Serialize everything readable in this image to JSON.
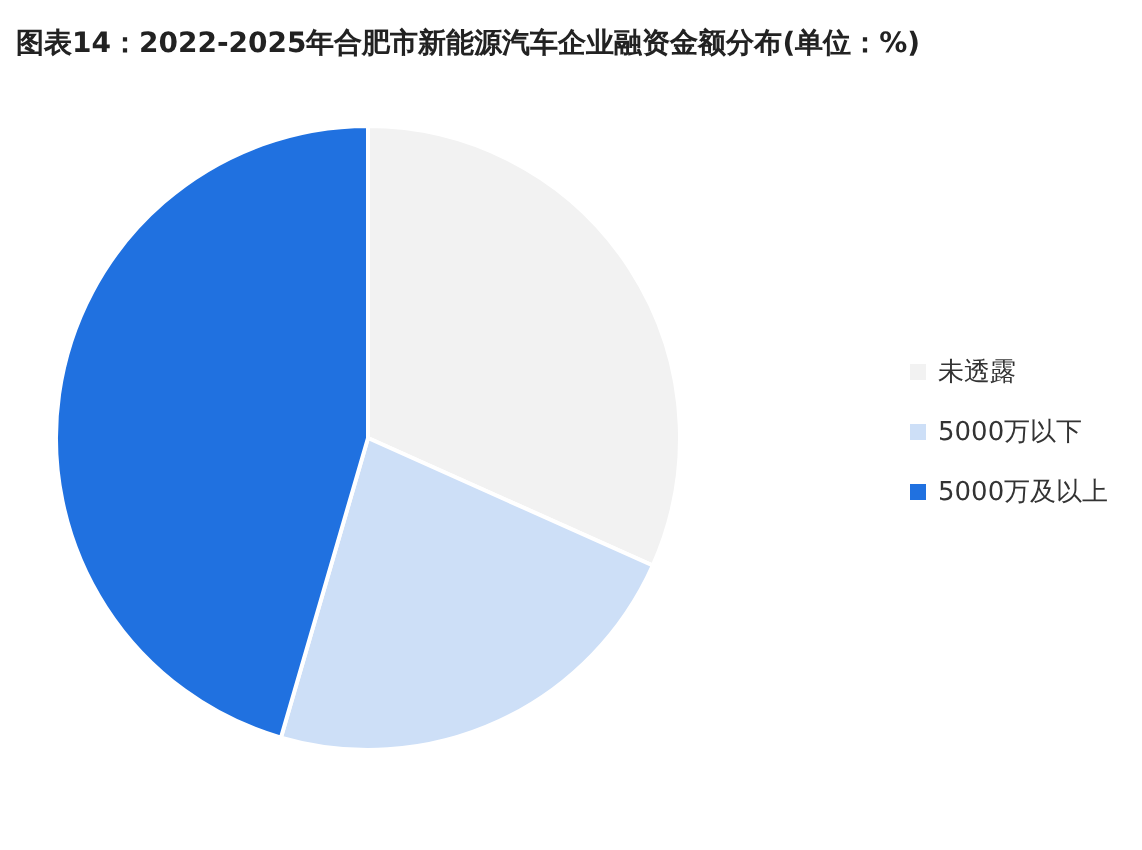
{
  "chart_data": {
    "type": "pie",
    "title": "图表14：2022-2025年合肥市新能源汽车企业融资金额分布(单位：%)",
    "categories": [
      "未透露",
      "5000万以下",
      "5000万及以上"
    ],
    "values": [
      31.7,
      22.8,
      45.5
    ],
    "colors": [
      "#f2f2f2",
      "#cddff7",
      "#2071e0"
    ],
    "legend": "right"
  }
}
